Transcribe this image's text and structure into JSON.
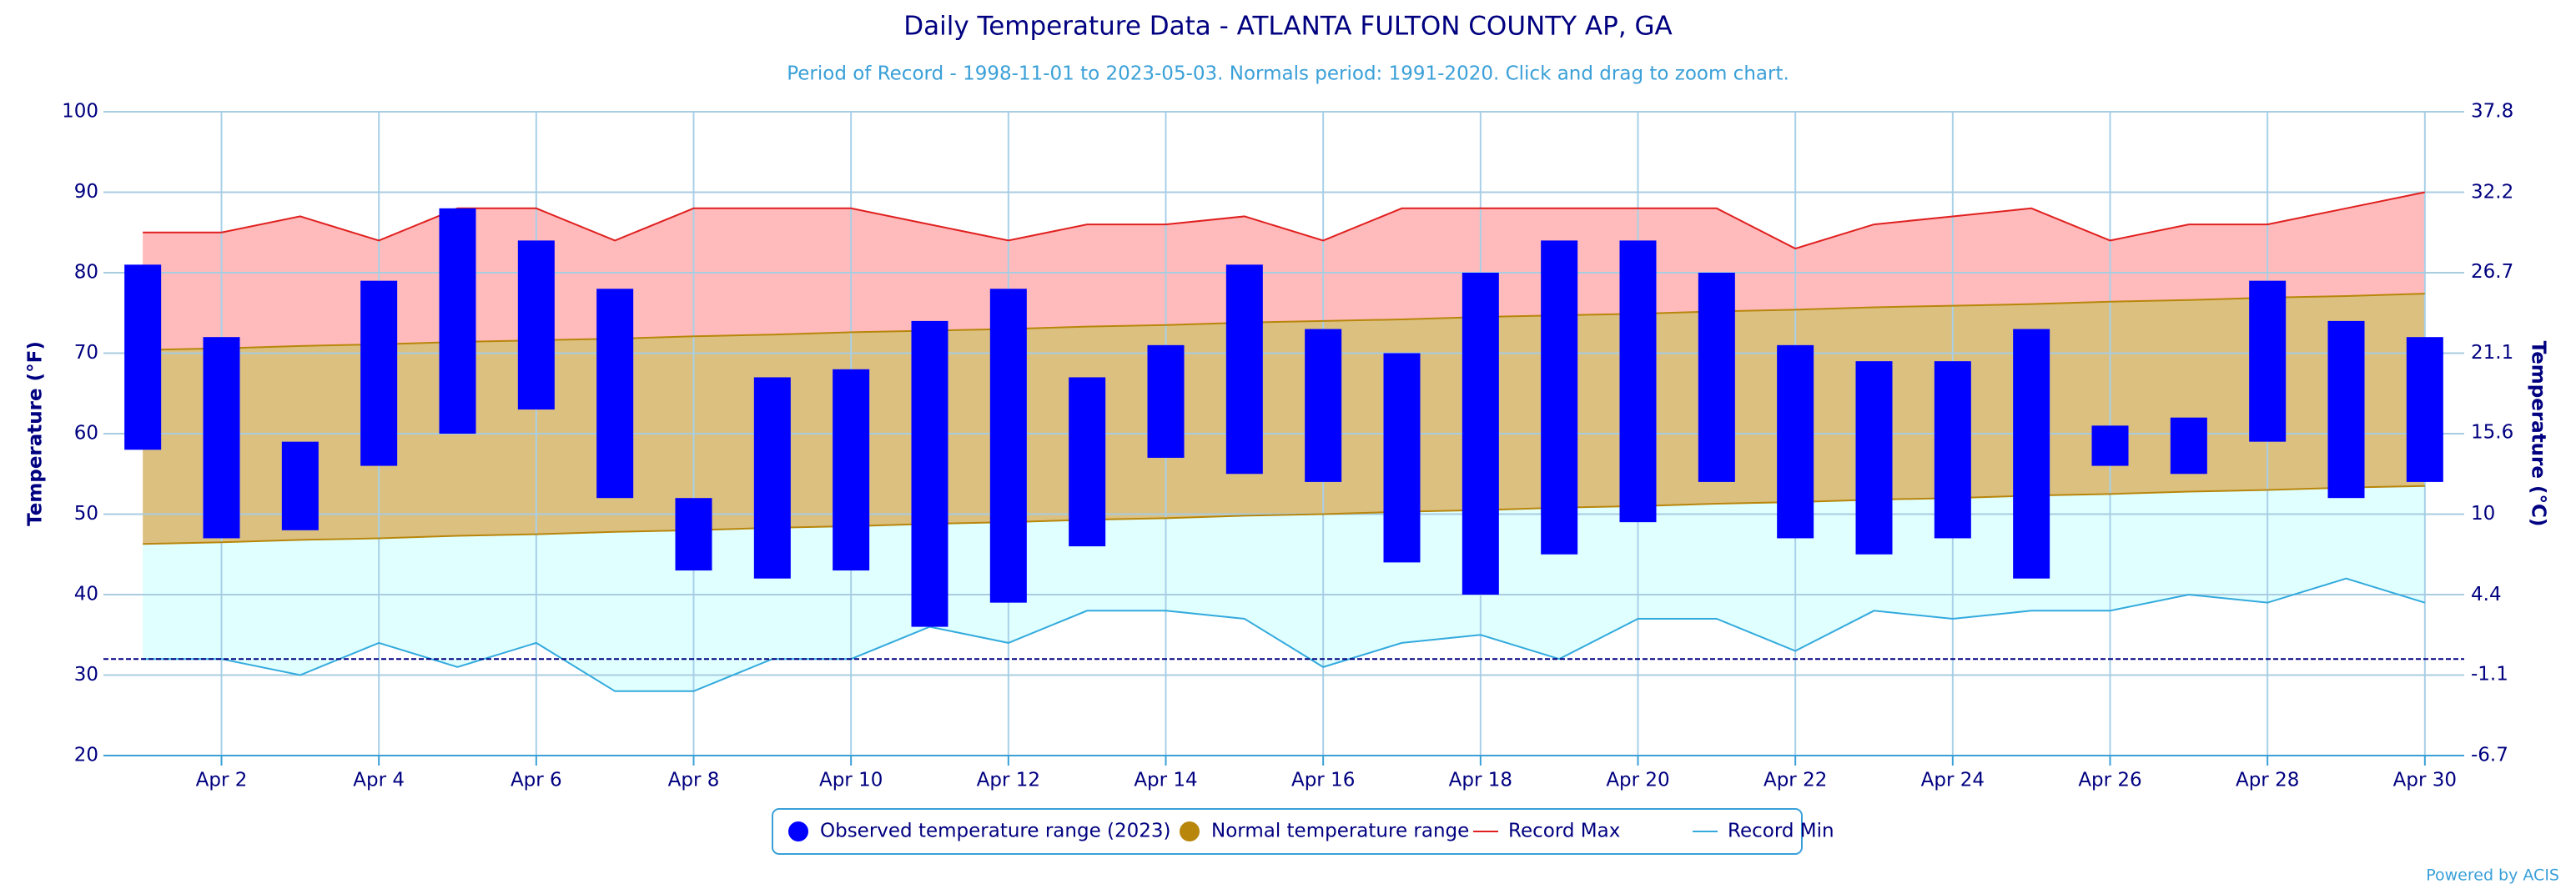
{
  "chart_data": {
    "type": "range",
    "title": "Daily Temperature Data - ATLANTA FULTON COUNTY AP, GA",
    "subtitle": "Period of Record - 1998-11-01 to 2023-05-03. Normals period: 1991-2020. Click and drag to zoom chart.",
    "y_label": "Temperature (°F)",
    "y2_label": "Temperature (°C)",
    "credit": "Powered by ACIS",
    "categories": [
      null,
      "Apr 2",
      null,
      "Apr 4",
      null,
      "Apr 6",
      null,
      "Apr 8",
      null,
      "Apr 10",
      null,
      "Apr 12",
      null,
      "Apr 14",
      null,
      "Apr 16",
      null,
      "Apr 18",
      null,
      "Apr 20",
      null,
      "Apr 22",
      null,
      "Apr 24",
      null,
      "Apr 26",
      null,
      "Apr 28",
      null,
      "Apr 30"
    ],
    "ylim": [
      20,
      100
    ],
    "yticks": [
      20,
      30,
      40,
      50,
      60,
      70,
      80,
      90,
      100
    ],
    "y2lim": [
      -6.7,
      37.8
    ],
    "y2ticks": [
      -6.7,
      -1.1,
      4.4,
      10,
      15.6,
      21.1,
      26.7,
      32.2,
      37.8
    ],
    "reference_line": 32,
    "grid": true,
    "legend": "bottom",
    "series": [
      {
        "name": "Observed temperature range (2023)",
        "color": "#0000ff",
        "high": [
          81,
          72,
          59,
          79,
          88,
          84,
          78,
          52,
          67,
          68,
          74,
          78,
          67,
          71,
          81,
          73,
          70,
          80,
          84,
          84,
          80,
          71,
          69,
          69,
          73,
          61,
          62,
          79,
          74,
          72
        ],
        "low": [
          58,
          47,
          48,
          56,
          60,
          63,
          52,
          43,
          42,
          43,
          36,
          39,
          46,
          57,
          55,
          54,
          44,
          40,
          45,
          49,
          54,
          47,
          45,
          47,
          42,
          56,
          55,
          59,
          52,
          54
        ]
      },
      {
        "name": "Normal temperature range",
        "color": "#b8860b",
        "high": [
          70.4,
          70.6,
          70.9,
          71.1,
          71.4,
          71.6,
          71.8,
          72.1,
          72.3,
          72.6,
          72.8,
          73.0,
          73.3,
          73.5,
          73.8,
          74.0,
          74.2,
          74.5,
          74.7,
          74.9,
          75.2,
          75.4,
          75.7,
          75.9,
          76.1,
          76.4,
          76.6,
          76.9,
          77.1,
          77.4
        ],
        "low": [
          46.3,
          46.5,
          46.8,
          47.0,
          47.3,
          47.5,
          47.8,
          48.0,
          48.3,
          48.5,
          48.8,
          49.0,
          49.3,
          49.5,
          49.8,
          50.0,
          50.3,
          50.5,
          50.8,
          51.0,
          51.3,
          51.5,
          51.8,
          52.0,
          52.3,
          52.5,
          52.8,
          53.0,
          53.3,
          53.5
        ]
      },
      {
        "name": "Record Max",
        "color": "#e02020",
        "values": [
          85,
          85,
          87,
          84,
          88,
          88,
          84,
          88,
          88,
          88,
          86,
          84,
          86,
          86,
          87,
          84,
          88,
          88,
          88,
          88,
          88,
          83,
          86,
          87,
          88,
          84,
          86,
          86,
          88,
          90
        ]
      },
      {
        "name": "Record Min",
        "color": "#33aadd",
        "values": [
          32,
          32,
          30,
          34,
          31,
          34,
          28,
          28,
          32,
          32,
          36,
          34,
          38,
          38,
          37,
          31,
          34,
          35,
          32,
          37,
          37,
          33,
          38,
          37,
          38,
          38,
          40,
          39,
          42,
          39
        ]
      }
    ]
  }
}
